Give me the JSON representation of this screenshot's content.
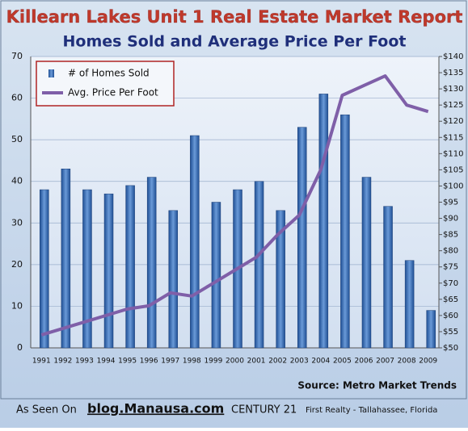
{
  "chart_data": {
    "type": "bar_line",
    "title": "Killearn Lakes Unit 1 Real Estate Market Report",
    "subtitle": "Homes Sold and Average Price Per Foot",
    "categories": [
      "1991",
      "1992",
      "1993",
      "1994",
      "1995",
      "1996",
      "1997",
      "1998",
      "1999",
      "2000",
      "2001",
      "2002",
      "2003",
      "2004",
      "2005",
      "2006",
      "2007",
      "2008",
      "2009"
    ],
    "series": [
      {
        "name": "# of Homes Sold",
        "type": "bar",
        "color": "#3f6fb5",
        "values": [
          38,
          43,
          38,
          37,
          39,
          41,
          33,
          51,
          35,
          38,
          40,
          33,
          53,
          61,
          56,
          41,
          34,
          21,
          9
        ]
      },
      {
        "name": "Avg. Price Per Foot",
        "type": "line",
        "axis": "y2",
        "color": "#7f5fa8",
        "values": [
          54,
          56,
          58,
          60,
          62,
          63,
          67,
          66,
          70,
          74,
          78,
          85,
          91,
          105,
          128,
          131,
          134,
          125,
          123
        ]
      }
    ],
    "ylim": [
      0,
      70
    ],
    "yticks": [
      0,
      10,
      20,
      30,
      40,
      50,
      60,
      70
    ],
    "y2lim": [
      50,
      140
    ],
    "y2ticks": [
      {
        "value": 50,
        "label": "$50"
      },
      {
        "value": 55,
        "label": "$55"
      },
      {
        "value": 60,
        "label": "$60"
      },
      {
        "value": 65,
        "label": "$65"
      },
      {
        "value": 70,
        "label": "$70"
      },
      {
        "value": 75,
        "label": "$75"
      },
      {
        "value": 80,
        "label": "$80"
      },
      {
        "value": 85,
        "label": "$85"
      },
      {
        "value": 90,
        "label": "$90"
      },
      {
        "value": 95,
        "label": "$95"
      },
      {
        "value": 100,
        "label": "$100"
      },
      {
        "value": 105,
        "label": "$105"
      },
      {
        "value": 110,
        "label": "$110"
      },
      {
        "value": 115,
        "label": "$115"
      },
      {
        "value": 120,
        "label": "$120"
      },
      {
        "value": 125,
        "label": "$125"
      },
      {
        "value": 130,
        "label": "$130"
      },
      {
        "value": 135,
        "label": "$135"
      },
      {
        "value": 140,
        "label": "$140"
      }
    ],
    "grid": true,
    "source": "Source: Metro Market Trends",
    "footer": {
      "prefix": "As Seen On",
      "site": "blog.Manausa.com",
      "brand": "CENTURY 21",
      "office": "First Realty - Tallahassee, Florida"
    }
  }
}
